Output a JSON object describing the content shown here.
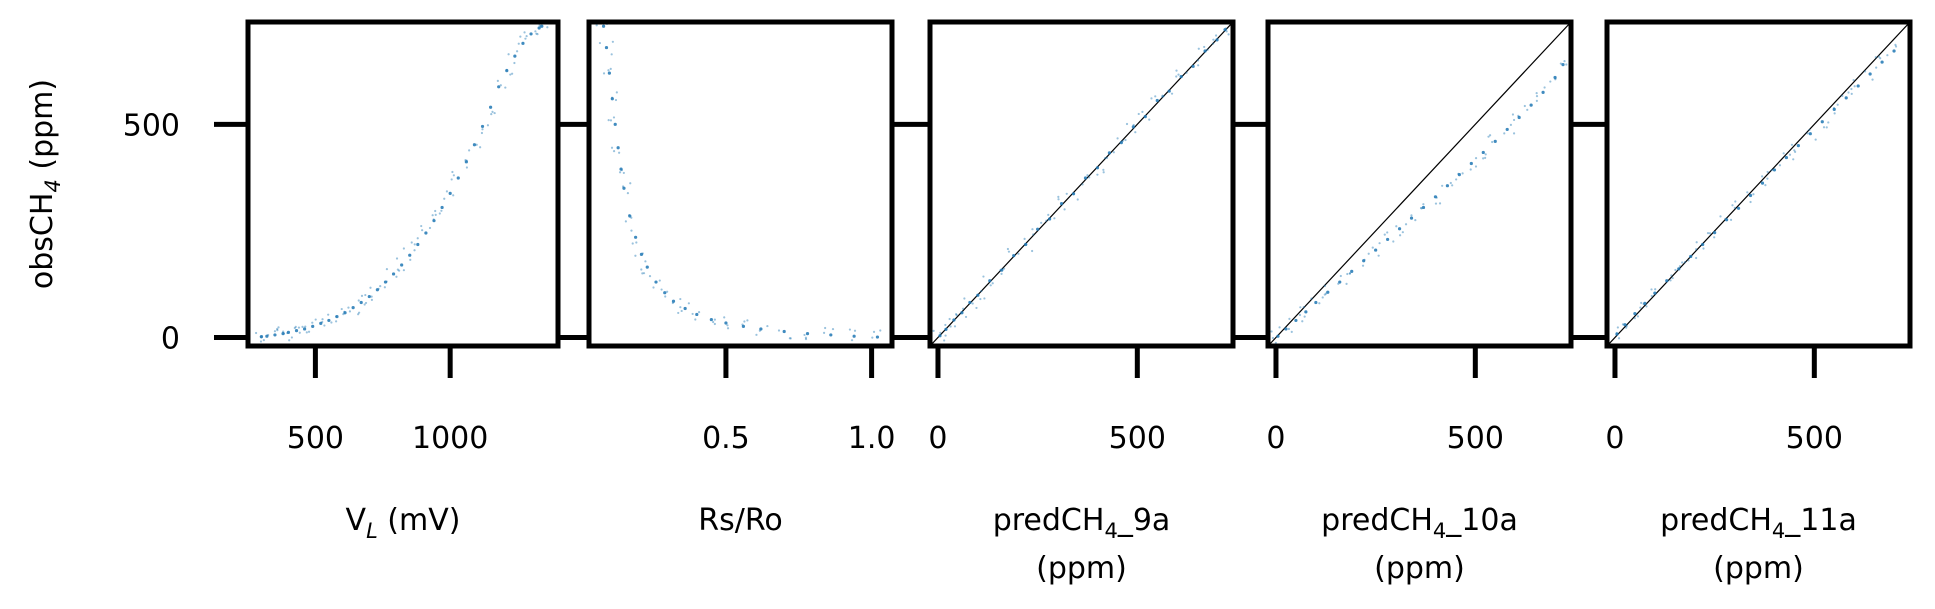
{
  "chart_data": {
    "type": "scatter",
    "point_color": "#1f77b4",
    "shared_y": {
      "label_main": "obsCH",
      "label_sub": "4",
      "label_tail": " (ppm)",
      "ylim": [
        -20,
        740
      ],
      "ticks": [
        0,
        500
      ],
      "tick_labels": [
        "0",
        "500"
      ]
    },
    "panels": [
      {
        "id": "vl",
        "xlabel": {
          "main": "V",
          "sub": "L",
          "tail": " (mV)",
          "line2": ""
        },
        "xlim": [
          250,
          1400
        ],
        "xticks": [
          500,
          1000
        ],
        "xtick_labels": [
          "500",
          "1000"
        ],
        "reference_line": false,
        "series": {
          "name": "",
          "x": [
            300,
            320,
            350,
            380,
            400,
            430,
            460,
            490,
            520,
            550,
            580,
            610,
            640,
            670,
            700,
            730,
            760,
            790,
            820,
            850,
            880,
            910,
            940,
            970,
            1000,
            1030,
            1060,
            1090,
            1120,
            1150,
            1180,
            1210,
            1240,
            1270,
            1300,
            1330,
            1340
          ],
          "y": [
            2,
            3,
            6,
            9,
            12,
            16,
            20,
            26,
            33,
            40,
            49,
            58,
            70,
            82,
            96,
            112,
            130,
            149,
            170,
            193,
            218,
            245,
            274,
            305,
            338,
            374,
            412,
            452,
            495,
            540,
            588,
            626,
            660,
            690,
            712,
            726,
            730
          ]
        }
      },
      {
        "id": "rsro",
        "xlabel": {
          "main": "Rs/Ro",
          "sub": "",
          "tail": "",
          "line2": ""
        },
        "xlim": [
          0.03,
          1.07
        ],
        "xticks": [
          0.5,
          1.0
        ],
        "xtick_labels": [
          "0.5",
          "1.0"
        ],
        "reference_line": false,
        "series": {
          "name": "",
          "x": [
            0.08,
            0.09,
            0.1,
            0.11,
            0.12,
            0.13,
            0.14,
            0.15,
            0.17,
            0.19,
            0.21,
            0.23,
            0.26,
            0.29,
            0.32,
            0.36,
            0.4,
            0.45,
            0.5,
            0.56,
            0.62,
            0.7,
            0.78,
            0.86,
            0.94,
            1.02
          ],
          "y": [
            730,
            680,
            620,
            560,
            500,
            445,
            395,
            350,
            285,
            235,
            195,
            165,
            130,
            105,
            85,
            68,
            54,
            42,
            34,
            26,
            20,
            14,
            9,
            6,
            3,
            1
          ]
        }
      },
      {
        "id": "p9a",
        "xlabel": {
          "main": "predCH",
          "sub": "4",
          "tail": "_9a",
          "line2": "(ppm)"
        },
        "xlim": [
          -20,
          740
        ],
        "xticks": [
          0,
          500
        ],
        "xtick_labels": [
          "0",
          "500"
        ],
        "reference_line": true,
        "series": {
          "name": "",
          "x": [
            5,
            20,
            40,
            60,
            80,
            100,
            130,
            160,
            190,
            220,
            250,
            280,
            310,
            340,
            370,
            400,
            430,
            460,
            490,
            520,
            550,
            580,
            610,
            640,
            670,
            700,
            720
          ],
          "y": [
            4,
            19,
            41,
            58,
            82,
            99,
            133,
            158,
            192,
            218,
            254,
            278,
            314,
            337,
            374,
            398,
            433,
            457,
            494,
            518,
            556,
            578,
            612,
            636,
            672,
            698,
            722
          ]
        }
      },
      {
        "id": "p10a",
        "xlabel": {
          "main": "predCH",
          "sub": "4",
          "tail": "_10a",
          "line2": "(ppm)"
        },
        "xlim": [
          -20,
          740
        ],
        "xticks": [
          0,
          500
        ],
        "xtick_labels": [
          "0",
          "500"
        ],
        "reference_line": true,
        "series": {
          "name": "",
          "x": [
            5,
            25,
            50,
            75,
            100,
            130,
            160,
            190,
            220,
            250,
            280,
            310,
            340,
            370,
            400,
            430,
            460,
            490,
            520,
            550,
            580,
            610,
            640,
            670,
            700,
            720
          ],
          "y": [
            3,
            20,
            40,
            60,
            82,
            106,
            130,
            155,
            180,
            205,
            230,
            255,
            280,
            305,
            330,
            356,
            382,
            408,
            434,
            460,
            488,
            516,
            545,
            575,
            610,
            640
          ]
        }
      },
      {
        "id": "p11a",
        "xlabel": {
          "main": "predCH",
          "sub": "4",
          "tail": "_11a",
          "line2": "(ppm)"
        },
        "xlim": [
          -20,
          740
        ],
        "xticks": [
          0,
          500
        ],
        "xtick_labels": [
          "0",
          "500"
        ],
        "reference_line": true,
        "series": {
          "name": "",
          "x": [
            5,
            25,
            50,
            75,
            100,
            130,
            160,
            190,
            220,
            250,
            280,
            310,
            340,
            370,
            400,
            430,
            460,
            490,
            520,
            550,
            580,
            610,
            640,
            670,
            700
          ],
          "y": [
            8,
            30,
            56,
            80,
            104,
            133,
            161,
            190,
            218,
            246,
            276,
            303,
            333,
            362,
            393,
            422,
            450,
            478,
            506,
            535,
            562,
            590,
            618,
            646,
            672
          ]
        }
      }
    ]
  }
}
